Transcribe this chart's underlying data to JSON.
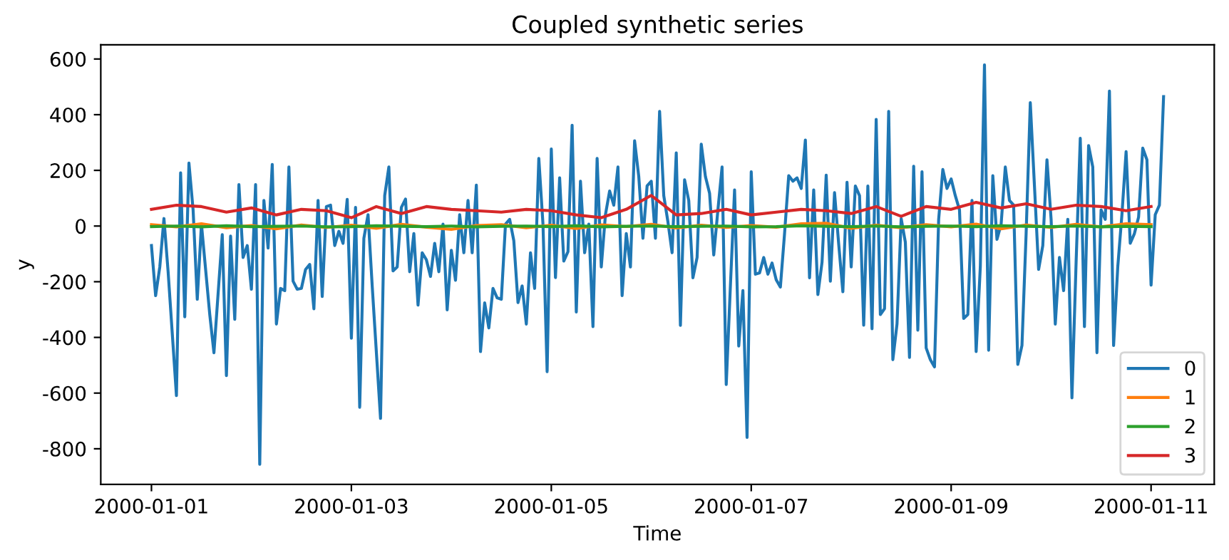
{
  "chart_data": {
    "type": "line",
    "title": "Coupled synthetic series",
    "xlabel": "Time",
    "ylabel": "y",
    "x": [
      "2000-01-01T00:00",
      "2000-01-01T06:00",
      "2000-01-01T12:00",
      "2000-01-01T18:00",
      "2000-01-02T00:00",
      "2000-01-02T06:00",
      "2000-01-02T12:00",
      "2000-01-02T18:00",
      "2000-01-03T00:00",
      "2000-01-03T06:00",
      "2000-01-03T12:00",
      "2000-01-03T18:00",
      "2000-01-04T00:00",
      "2000-01-04T06:00",
      "2000-01-04T12:00",
      "2000-01-04T18:00",
      "2000-01-05T00:00",
      "2000-01-05T06:00",
      "2000-01-05T12:00",
      "2000-01-05T18:00",
      "2000-01-06T00:00",
      "2000-01-06T06:00",
      "2000-01-06T12:00",
      "2000-01-06T18:00",
      "2000-01-07T00:00",
      "2000-01-07T06:00",
      "2000-01-07T12:00",
      "2000-01-07T18:00",
      "2000-01-08T00:00",
      "2000-01-08T06:00",
      "2000-01-08T12:00",
      "2000-01-08T18:00",
      "2000-01-09T00:00",
      "2000-01-09T06:00",
      "2000-01-09T12:00",
      "2000-01-09T18:00",
      "2000-01-10T00:00",
      "2000-01-10T06:00",
      "2000-01-10T12:00",
      "2000-01-10T18:00",
      "2000-01-11T00:00"
    ],
    "series": [
      {
        "name": "0",
        "color": "#1f77b4",
        "x": [
          "2000-01-01T00:00",
          "2000-01-01T01:00",
          "2000-01-01T02:00",
          "2000-01-01T03:00",
          "2000-01-01T04:00",
          "2000-01-01T06:00",
          "2000-01-01T07:00",
          "2000-01-01T08:00",
          "2000-01-01T09:00",
          "2000-01-01T10:00",
          "2000-01-01T11:00",
          "2000-01-01T12:00",
          "2000-01-01T14:00",
          "2000-01-01T15:00",
          "2000-01-01T17:00",
          "2000-01-01T18:00",
          "2000-01-01T19:00",
          "2000-01-01T20:00",
          "2000-01-01T21:00",
          "2000-01-01T22:00",
          "2000-01-01T23:00",
          "2000-01-02T00:00",
          "2000-01-02T01:00",
          "2000-01-02T02:00",
          "2000-01-02T03:00",
          "2000-01-02T04:00",
          "2000-01-02T05:00",
          "2000-01-02T06:00",
          "2000-01-02T07:00",
          "2000-01-02T08:00",
          "2000-01-02T09:00",
          "2000-01-02T10:00",
          "2000-01-02T11:00",
          "2000-01-02T12:00",
          "2000-01-02T13:00",
          "2000-01-02T14:00",
          "2000-01-02T15:00",
          "2000-01-02T16:00",
          "2000-01-02T17:00",
          "2000-01-02T18:00",
          "2000-01-02T19:00",
          "2000-01-02T20:00",
          "2000-01-02T21:00",
          "2000-01-02T22:00",
          "2000-01-02T23:00",
          "2000-01-03T00:00",
          "2000-01-03T01:00",
          "2000-01-03T02:00",
          "2000-01-03T03:00",
          "2000-01-03T04:00",
          "2000-01-03T05:00",
          "2000-01-03T07:00",
          "2000-01-03T08:00",
          "2000-01-03T09:00",
          "2000-01-03T10:00",
          "2000-01-03T11:00",
          "2000-01-03T12:00",
          "2000-01-03T13:00",
          "2000-01-03T14:00",
          "2000-01-03T15:00",
          "2000-01-03T16:00",
          "2000-01-03T17:00",
          "2000-01-03T18:00",
          "2000-01-03T19:00",
          "2000-01-03T20:00",
          "2000-01-03T21:00",
          "2000-01-03T22:00",
          "2000-01-03T23:00",
          "2000-01-04T00:00",
          "2000-01-04T01:00",
          "2000-01-04T02:00",
          "2000-01-04T03:00",
          "2000-01-04T04:00",
          "2000-01-04T05:00",
          "2000-01-04T06:00",
          "2000-01-04T07:00",
          "2000-01-04T08:00",
          "2000-01-04T09:00",
          "2000-01-04T10:00",
          "2000-01-04T11:00",
          "2000-01-04T12:00",
          "2000-01-04T13:00",
          "2000-01-04T14:00",
          "2000-01-04T15:00",
          "2000-01-04T16:00",
          "2000-01-04T17:00",
          "2000-01-04T18:00",
          "2000-01-04T19:00",
          "2000-01-04T20:00",
          "2000-01-04T21:00",
          "2000-01-04T22:00",
          "2000-01-04T23:00",
          "2000-01-05T00:00",
          "2000-01-05T01:00",
          "2000-01-05T02:00",
          "2000-01-05T03:00",
          "2000-01-05T04:00",
          "2000-01-05T05:00",
          "2000-01-05T06:00",
          "2000-01-05T07:00",
          "2000-01-05T08:00",
          "2000-01-05T09:00",
          "2000-01-05T10:00",
          "2000-01-05T11:00",
          "2000-01-05T12:00",
          "2000-01-05T13:00",
          "2000-01-05T14:00",
          "2000-01-05T15:00",
          "2000-01-05T16:00",
          "2000-01-05T17:00",
          "2000-01-05T18:00",
          "2000-01-05T19:00",
          "2000-01-05T20:00",
          "2000-01-05T21:00",
          "2000-01-05T22:00",
          "2000-01-05T23:00",
          "2000-01-06T00:00",
          "2000-01-06T01:00",
          "2000-01-06T02:00",
          "2000-01-06T03:00",
          "2000-01-06T04:00",
          "2000-01-06T05:00",
          "2000-01-06T06:00",
          "2000-01-06T07:00",
          "2000-01-06T08:00",
          "2000-01-06T09:00",
          "2000-01-06T10:00",
          "2000-01-06T11:00",
          "2000-01-06T12:00",
          "2000-01-06T13:00",
          "2000-01-06T14:00",
          "2000-01-06T15:00",
          "2000-01-06T16:00",
          "2000-01-06T17:00",
          "2000-01-06T18:00",
          "2000-01-06T19:00",
          "2000-01-06T20:00",
          "2000-01-06T21:00",
          "2000-01-06T22:00",
          "2000-01-06T23:00",
          "2000-01-07T00:00",
          "2000-01-07T01:00",
          "2000-01-07T02:00",
          "2000-01-07T03:00",
          "2000-01-07T04:00",
          "2000-01-07T05:00",
          "2000-01-07T06:00",
          "2000-01-07T07:00",
          "2000-01-07T08:00",
          "2000-01-07T09:00",
          "2000-01-07T10:00",
          "2000-01-07T11:00",
          "2000-01-07T12:00",
          "2000-01-07T13:00",
          "2000-01-07T14:00",
          "2000-01-07T15:00",
          "2000-01-07T16:00",
          "2000-01-07T17:00",
          "2000-01-07T18:00",
          "2000-01-07T19:00",
          "2000-01-07T20:00",
          "2000-01-07T21:00",
          "2000-01-07T22:00",
          "2000-01-07T23:00",
          "2000-01-08T00:00",
          "2000-01-08T01:00",
          "2000-01-08T02:00",
          "2000-01-08T03:00",
          "2000-01-08T04:00",
          "2000-01-08T05:00",
          "2000-01-08T06:00",
          "2000-01-08T07:00",
          "2000-01-08T08:00",
          "2000-01-08T09:00",
          "2000-01-08T10:00",
          "2000-01-08T11:00",
          "2000-01-08T12:00",
          "2000-01-08T13:00",
          "2000-01-08T14:00",
          "2000-01-08T15:00",
          "2000-01-08T16:00",
          "2000-01-08T17:00",
          "2000-01-08T18:00",
          "2000-01-08T19:00",
          "2000-01-08T20:00",
          "2000-01-08T21:00",
          "2000-01-08T22:00",
          "2000-01-08T23:00",
          "2000-01-09T00:00",
          "2000-01-09T01:00",
          "2000-01-09T02:00",
          "2000-01-09T03:00",
          "2000-01-09T04:00",
          "2000-01-09T05:00",
          "2000-01-09T06:00",
          "2000-01-09T07:00",
          "2000-01-09T08:00",
          "2000-01-09T09:00",
          "2000-01-09T10:00",
          "2000-01-09T11:00",
          "2000-01-09T12:00",
          "2000-01-09T13:00",
          "2000-01-09T14:00",
          "2000-01-09T15:00",
          "2000-01-09T16:00",
          "2000-01-09T17:00",
          "2000-01-09T18:00",
          "2000-01-09T19:00",
          "2000-01-09T20:00",
          "2000-01-09T21:00",
          "2000-01-09T22:00",
          "2000-01-09T23:00",
          "2000-01-10T00:00",
          "2000-01-10T01:00",
          "2000-01-10T02:00",
          "2000-01-10T03:00",
          "2000-01-10T04:00",
          "2000-01-10T05:00",
          "2000-01-10T06:00",
          "2000-01-10T07:00",
          "2000-01-10T08:00",
          "2000-01-10T09:00",
          "2000-01-10T10:00",
          "2000-01-10T11:00",
          "2000-01-10T12:00",
          "2000-01-10T13:00",
          "2000-01-10T14:00",
          "2000-01-10T15:00",
          "2000-01-10T16:00",
          "2000-01-10T17:00",
          "2000-01-10T18:00",
          "2000-01-10T19:00",
          "2000-01-10T20:00",
          "2000-01-10T21:00",
          "2000-01-10T22:00",
          "2000-01-10T23:00",
          "2000-01-11T00:00",
          "2000-01-11T01:00",
          "2000-01-11T02:00",
          "2000-01-11T03:00"
        ],
        "values": [
          -70,
          -250,
          -147,
          27,
          -164,
          -609,
          191,
          -326,
          226,
          58,
          -263,
          7,
          -318,
          -455,
          -31,
          -537,
          -36,
          -335,
          149,
          -113,
          -70,
          -227,
          149,
          -856,
          92,
          -79,
          221,
          -352,
          -224,
          -232,
          212,
          -198,
          -227,
          -224,
          -156,
          -138,
          -297,
          92,
          -253,
          70,
          75,
          -70,
          -19,
          -62,
          96,
          -403,
          67,
          -651,
          -44,
          41,
          -215,
          -691,
          109,
          212,
          -161,
          -147,
          67,
          97,
          -164,
          -27,
          -284,
          -96,
          -121,
          -181,
          -62,
          -164,
          7,
          -301,
          -87,
          -195,
          41,
          -96,
          92,
          -96,
          147,
          -451,
          -276,
          -366,
          -224,
          -258,
          -263,
          7,
          24,
          -53,
          -275,
          -215,
          -352,
          -96,
          -224,
          243,
          7,
          -523,
          277,
          -185,
          173,
          -126,
          -92,
          362,
          -309,
          161,
          -96,
          7,
          -361,
          243,
          -147,
          41,
          126,
          75,
          212,
          -250,
          -27,
          -147,
          306,
          178,
          -44,
          144,
          161,
          -44,
          412,
          109,
          15,
          -96,
          263,
          -357,
          166,
          92,
          -186,
          -113,
          294,
          178,
          118,
          -104,
          58,
          212,
          -569,
          -215,
          130,
          -431,
          -232,
          -759,
          195,
          -173,
          -168,
          -113,
          -173,
          -133,
          -193,
          -219,
          -27,
          181,
          161,
          173,
          135,
          309,
          -186,
          130,
          -246,
          -130,
          183,
          -198,
          120,
          -65,
          -236,
          157,
          -147,
          144,
          109,
          -356,
          144,
          -369,
          383,
          -318,
          -297,
          412,
          -480,
          -352,
          27,
          -58,
          -472,
          215,
          -374,
          195,
          -438,
          -480,
          -506,
          24,
          203,
          135,
          169,
          109,
          58,
          -332,
          -318,
          92,
          -451,
          -147,
          579,
          -446,
          181,
          -48,
          7,
          212,
          92,
          75,
          -497,
          -429,
          -27,
          443,
          144,
          -156,
          -70,
          238,
          24,
          -352,
          -113,
          -232,
          24,
          -617,
          -130,
          315,
          -361,
          289,
          212,
          -455,
          58,
          24,
          485,
          -429,
          -147,
          41,
          267,
          -62,
          -27,
          32,
          280,
          238,
          -212,
          41,
          75,
          465
        ]
      },
      {
        "name": "1",
        "color": "#ff7f0e",
        "values": [
          5,
          -3,
          8,
          -6,
          2,
          -10,
          4,
          -5,
          3,
          -8,
          6,
          -4,
          -12,
          2,
          5,
          -6,
          3,
          -9,
          4,
          -2,
          6,
          -7,
          3,
          -5,
          2,
          -4,
          8,
          10,
          -8,
          3,
          -6,
          5,
          -3,
          7,
          -10,
          4,
          -5,
          6,
          -3,
          8,
          5
        ]
      },
      {
        "name": "2",
        "color": "#2ca02c",
        "values": [
          -2,
          0,
          -3,
          1,
          -2,
          -1,
          0,
          -3,
          -2,
          1,
          -1,
          -2,
          0,
          -3,
          -1,
          0,
          -2,
          1,
          -3,
          -1,
          0,
          -2,
          -1,
          0,
          -3,
          -2,
          1,
          -1,
          -2,
          0,
          -3,
          -1,
          0,
          -2,
          1,
          -1,
          -2,
          0,
          -3,
          -1,
          -2
        ]
      },
      {
        "name": "3",
        "color": "#d62728",
        "values": [
          60,
          75,
          70,
          50,
          65,
          40,
          60,
          55,
          30,
          70,
          45,
          70,
          60,
          55,
          50,
          60,
          55,
          40,
          30,
          60,
          110,
          40,
          45,
          60,
          40,
          50,
          60,
          55,
          45,
          70,
          35,
          70,
          60,
          85,
          65,
          80,
          60,
          75,
          70,
          55,
          70
        ]
      }
    ],
    "xlim": [
      "1999-12-31T11:50",
      "2000-01-11T15:10"
    ],
    "xticks": [
      "2000-01-01",
      "2000-01-03",
      "2000-01-05",
      "2000-01-07",
      "2000-01-09",
      "2000-01-11"
    ],
    "ylim": [
      -928,
      651
    ],
    "yticks": [
      -800,
      -600,
      -400,
      -200,
      0,
      200,
      400,
      600
    ],
    "legend": "lower right"
  }
}
